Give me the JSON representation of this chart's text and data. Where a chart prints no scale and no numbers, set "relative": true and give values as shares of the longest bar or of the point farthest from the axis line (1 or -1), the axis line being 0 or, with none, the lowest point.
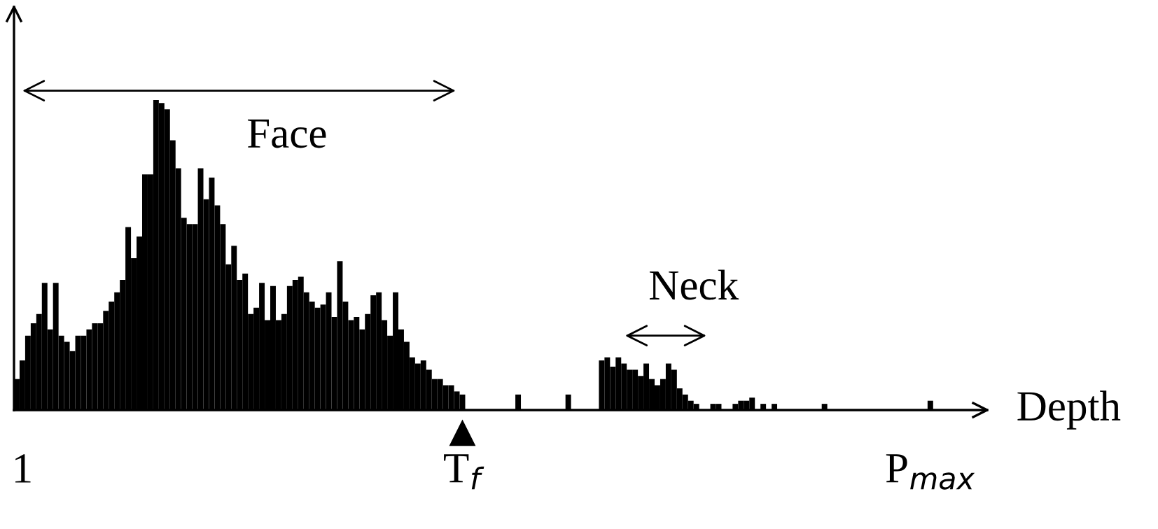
{
  "chart_data": {
    "type": "bar",
    "relative": true,
    "color": "#000000",
    "xlabel": "Depth",
    "categories": [
      null,
      "1",
      null,
      null,
      null,
      null,
      null,
      null,
      null,
      null,
      null,
      null,
      null,
      null,
      null,
      null,
      null,
      null,
      null,
      null,
      null,
      null,
      null,
      null,
      null,
      null,
      null,
      null,
      null,
      null,
      null,
      null,
      null,
      null,
      null,
      null,
      null,
      null,
      null,
      null,
      null,
      null,
      null,
      null,
      null,
      null,
      null,
      null,
      null,
      null,
      null,
      null,
      null,
      null,
      null,
      null,
      null,
      null,
      null,
      null,
      null,
      null,
      null,
      null,
      null,
      null,
      null,
      null,
      null,
      null,
      null,
      null,
      null,
      null,
      null,
      null,
      null,
      null,
      null,
      null,
      "T$_{f}$",
      null,
      null,
      null,
      null,
      null,
      null,
      null,
      null,
      null,
      null,
      null,
      null,
      null,
      null,
      null,
      null,
      null,
      null,
      null,
      null,
      null,
      null,
      null,
      null,
      null,
      null,
      null,
      null,
      null,
      null,
      null,
      null,
      null,
      null,
      null,
      null,
      null,
      null,
      null,
      null,
      null,
      null,
      null,
      null,
      null,
      null,
      null,
      null,
      null,
      null,
      null,
      null,
      null,
      null,
      null,
      null,
      null,
      null,
      null,
      null,
      null,
      null,
      null,
      null,
      null,
      null,
      null,
      null,
      null,
      null,
      null,
      null,
      null,
      null,
      null,
      null,
      null,
      null,
      null,
      null,
      null,
      null,
      null,
      "P$_{max}$",
      null,
      null,
      null,
      null,
      null,
      null,
      null,
      null,
      null
    ],
    "values": [
      0.1,
      0.16,
      0.24,
      0.28,
      0.31,
      0.41,
      0.26,
      0.41,
      0.24,
      0.22,
      0.19,
      0.24,
      0.24,
      0.26,
      0.28,
      0.28,
      0.32,
      0.35,
      0.38,
      0.42,
      0.59,
      0.49,
      0.56,
      0.76,
      0.76,
      1.0,
      0.99,
      0.97,
      0.87,
      0.78,
      0.62,
      0.6,
      0.6,
      0.78,
      0.68,
      0.75,
      0.66,
      0.6,
      0.47,
      0.53,
      0.42,
      0.44,
      0.31,
      0.33,
      0.41,
      0.29,
      0.4,
      0.29,
      0.31,
      0.4,
      0.42,
      0.43,
      0.38,
      0.35,
      0.33,
      0.34,
      0.38,
      0.3,
      0.48,
      0.35,
      0.29,
      0.3,
      0.26,
      0.31,
      0.37,
      0.38,
      0.29,
      0.24,
      0.38,
      0.26,
      0.22,
      0.17,
      0.15,
      0.16,
      0.13,
      0.1,
      0.1,
      0.08,
      0.08,
      0.06,
      0.05,
      0,
      0,
      0,
      0,
      0,
      0,
      0,
      0,
      0,
      0.05,
      0,
      0,
      0,
      0,
      0,
      0,
      0,
      0,
      0.05,
      0,
      0,
      0,
      0,
      0,
      0.16,
      0.17,
      0.14,
      0.17,
      0.15,
      0.13,
      0.13,
      0.11,
      0.15,
      0.1,
      0.08,
      0.1,
      0.15,
      0.13,
      0.07,
      0.05,
      0.03,
      0.02,
      0,
      0,
      0.02,
      0.02,
      0,
      0,
      0.02,
      0.03,
      0.03,
      0.04,
      0,
      0.02,
      0,
      0.02,
      0,
      0,
      0,
      0,
      0,
      0,
      0,
      0,
      0.02,
      0,
      0,
      0,
      0,
      0,
      0,
      0,
      0,
      0,
      0,
      0,
      0,
      0,
      0,
      0,
      0,
      0,
      0,
      0.03,
      0,
      0,
      0,
      0,
      0,
      0,
      0,
      0,
      0
    ],
    "annotations": [
      "Face",
      "Neck"
    ]
  }
}
